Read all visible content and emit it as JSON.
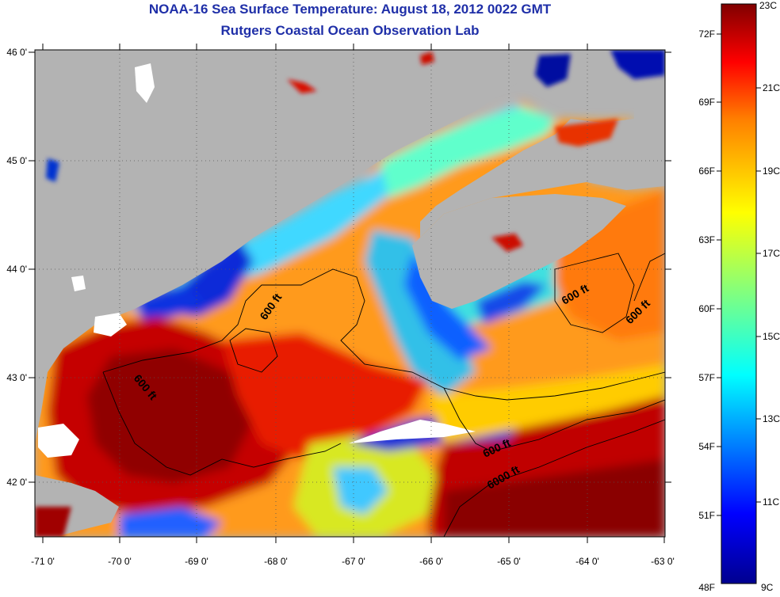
{
  "header": {
    "title": "NOAA-16 Sea Surface Temperature:  August 18, 2012 0022 GMT",
    "subtitle": "Rutgers Coastal Ocean Observation Lab"
  },
  "map": {
    "lon_ticks": [
      "-71 0'",
      "-70 0'",
      "-69 0'",
      "-68 0'",
      "-67 0'",
      "-66 0'",
      "-65 0'",
      "-64 0'",
      "-63 0'"
    ],
    "lat_ticks": [
      "46 0'",
      "45 0'",
      "44 0'",
      "43 0'",
      "42 0'"
    ],
    "contour_labels": [
      "600 ft",
      "600 ft",
      "600 ft",
      "600 ft",
      "600 ft",
      "6000 ft"
    ],
    "land_color": "#b3b3b3",
    "cloud_color": "#ffffff"
  },
  "colorbar": {
    "min_c": 9,
    "max_c": 23,
    "fahrenheit_labels": [
      "72F",
      "69F",
      "66F",
      "63F",
      "60F",
      "57F",
      "54F",
      "51F",
      "48F"
    ],
    "celsius_labels": [
      "23C",
      "21C",
      "19C",
      "17C",
      "15C",
      "13C",
      "11C",
      "9C"
    ],
    "colors": [
      "#00008f",
      "#0000ff",
      "#0080ff",
      "#00ffff",
      "#80ff80",
      "#ffff00",
      "#ff8000",
      "#ff0000",
      "#800000"
    ]
  }
}
